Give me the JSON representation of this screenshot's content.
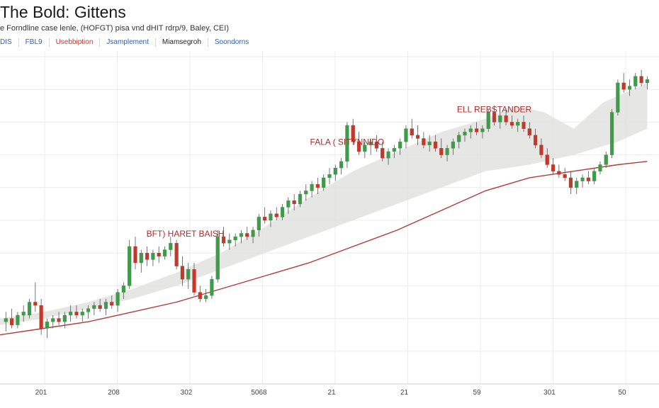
{
  "title": "The Bold: Gittens",
  "subtitle": "e Forndline case lenle, (HOFGT) pisa vnd dHIT rdrp/9, Baley, CEI)",
  "tabs": [
    {
      "label": "DIS",
      "color": "#2a62b8"
    },
    {
      "label": "FBL9",
      "color": "#2a62b8"
    },
    {
      "label": "Usebbiption",
      "color": "#c0392b"
    },
    {
      "label": "Jsamplement",
      "color": "#2a62b8"
    },
    {
      "label": "Miamsegroh",
      "color": "#222222"
    },
    {
      "label": "Soondorns",
      "color": "#2a62b8"
    }
  ],
  "colors": {
    "up": "#3f9a4a",
    "down": "#c0392b",
    "ma_line": "#b23a3a",
    "band": "#e2e2e0",
    "grid": "#ececec",
    "annotation": "#b02a2a"
  },
  "chart_data": {
    "type": "candlestick",
    "title": "The Bold: Gittens",
    "x_tick_labels": [
      "201",
      "208",
      "302",
      "5068",
      "21",
      "21",
      "59",
      "301",
      "50"
    ],
    "ylim": [
      0,
      100
    ],
    "grid": true,
    "annotations": [
      {
        "text": "BFT) HARET BAISH",
        "x": 63,
        "y": 45
      },
      {
        "text": "FALA ( SITYNNIDO",
        "x": 118,
        "y": 73
      },
      {
        "text": "ELL REBSTANDER",
        "x": 168,
        "y": 83
      }
    ],
    "candles": [
      [
        2,
        19,
        22,
        16,
        20
      ],
      [
        4,
        20,
        23,
        17,
        18
      ],
      [
        6,
        18,
        22,
        17,
        21
      ],
      [
        8,
        21,
        24,
        19,
        22
      ],
      [
        10,
        21,
        26,
        20,
        25
      ],
      [
        12,
        25,
        31,
        22,
        24
      ],
      [
        14,
        24,
        26,
        15,
        17
      ],
      [
        16,
        17,
        20,
        14,
        19
      ],
      [
        18,
        19,
        21,
        17,
        20
      ],
      [
        20,
        20,
        22,
        18,
        19
      ],
      [
        22,
        19,
        22,
        17,
        21
      ],
      [
        24,
        21,
        24,
        19,
        22
      ],
      [
        26,
        22,
        24,
        20,
        21
      ],
      [
        28,
        21,
        23,
        19,
        22
      ],
      [
        30,
        22,
        24,
        20,
        23
      ],
      [
        32,
        23,
        25,
        21,
        24
      ],
      [
        34,
        24,
        26,
        22,
        23
      ],
      [
        36,
        23,
        26,
        21,
        25
      ],
      [
        38,
        25,
        27,
        23,
        24
      ],
      [
        40,
        24,
        29,
        22,
        28
      ],
      [
        42,
        28,
        31,
        26,
        30
      ],
      [
        44,
        30,
        44,
        29,
        42
      ],
      [
        46,
        42,
        45,
        35,
        37
      ],
      [
        48,
        37,
        41,
        34,
        40
      ],
      [
        50,
        40,
        42,
        36,
        38
      ],
      [
        52,
        38,
        41,
        36,
        40
      ],
      [
        54,
        40,
        42,
        37,
        39
      ],
      [
        56,
        39,
        42,
        38,
        41
      ],
      [
        58,
        41,
        45,
        39,
        43
      ],
      [
        60,
        43,
        44,
        35,
        36
      ],
      [
        62,
        36,
        39,
        30,
        32
      ],
      [
        64,
        32,
        37,
        29,
        35
      ],
      [
        66,
        35,
        37,
        27,
        28
      ],
      [
        68,
        28,
        30,
        25,
        26
      ],
      [
        70,
        26,
        29,
        25,
        27
      ],
      [
        72,
        27,
        33,
        26,
        32
      ],
      [
        74,
        32,
        47,
        31,
        45
      ],
      [
        76,
        45,
        48,
        42,
        43
      ],
      [
        78,
        43,
        46,
        41,
        44
      ],
      [
        80,
        44,
        46,
        42,
        45
      ],
      [
        82,
        45,
        47,
        43,
        46
      ],
      [
        84,
        46,
        48,
        44,
        45
      ],
      [
        86,
        45,
        48,
        43,
        47
      ],
      [
        88,
        47,
        52,
        45,
        51
      ],
      [
        90,
        51,
        54,
        49,
        50
      ],
      [
        92,
        50,
        53,
        48,
        52
      ],
      [
        94,
        52,
        54,
        50,
        51
      ],
      [
        96,
        51,
        55,
        50,
        54
      ],
      [
        98,
        54,
        57,
        52,
        56
      ],
      [
        100,
        56,
        58,
        53,
        55
      ],
      [
        102,
        55,
        59,
        54,
        58
      ],
      [
        104,
        58,
        61,
        56,
        59
      ],
      [
        106,
        59,
        62,
        57,
        61
      ],
      [
        108,
        61,
        63,
        58,
        60
      ],
      [
        110,
        60,
        64,
        59,
        63
      ],
      [
        112,
        63,
        66,
        61,
        64
      ],
      [
        114,
        64,
        67,
        62,
        66
      ],
      [
        116,
        66,
        69,
        64,
        68
      ],
      [
        118,
        68,
        80,
        66,
        79
      ],
      [
        120,
        79,
        81,
        73,
        74
      ],
      [
        122,
        74,
        77,
        70,
        71
      ],
      [
        124,
        71,
        74,
        69,
        73
      ],
      [
        126,
        73,
        75,
        70,
        74
      ],
      [
        128,
        74,
        76,
        71,
        72
      ],
      [
        130,
        72,
        74,
        68,
        69
      ],
      [
        132,
        69,
        72,
        67,
        71
      ],
      [
        134,
        71,
        73,
        69,
        72
      ],
      [
        136,
        72,
        75,
        70,
        74
      ],
      [
        138,
        74,
        79,
        72,
        78
      ],
      [
        140,
        78,
        81,
        75,
        76
      ],
      [
        142,
        76,
        79,
        73,
        75
      ],
      [
        144,
        75,
        77,
        72,
        73
      ],
      [
        146,
        73,
        76,
        71,
        74
      ],
      [
        148,
        74,
        76,
        71,
        72
      ],
      [
        150,
        72,
        75,
        69,
        70
      ],
      [
        152,
        70,
        73,
        68,
        72
      ],
      [
        154,
        72,
        75,
        70,
        74
      ],
      [
        156,
        74,
        77,
        72,
        76
      ],
      [
        158,
        76,
        78,
        74,
        77
      ],
      [
        160,
        77,
        79,
        75,
        78
      ],
      [
        162,
        78,
        80,
        76,
        77
      ],
      [
        164,
        77,
        79,
        75,
        78
      ],
      [
        166,
        78,
        84,
        77,
        83
      ],
      [
        168,
        83,
        85,
        79,
        80
      ],
      [
        170,
        80,
        83,
        78,
        82
      ],
      [
        172,
        82,
        84,
        79,
        80
      ],
      [
        174,
        80,
        82,
        78,
        79
      ],
      [
        176,
        79,
        81,
        77,
        80
      ],
      [
        178,
        80,
        82,
        77,
        78
      ],
      [
        180,
        78,
        80,
        75,
        76
      ],
      [
        182,
        76,
        78,
        72,
        73
      ],
      [
        184,
        73,
        75,
        69,
        70
      ],
      [
        186,
        70,
        72,
        66,
        67
      ],
      [
        188,
        67,
        69,
        64,
        65
      ],
      [
        190,
        65,
        67,
        63,
        64
      ],
      [
        192,
        64,
        66,
        62,
        63
      ],
      [
        194,
        63,
        65,
        58,
        60
      ],
      [
        196,
        60,
        63,
        58,
        62
      ],
      [
        198,
        62,
        64,
        60,
        63
      ],
      [
        200,
        63,
        65,
        61,
        62
      ],
      [
        202,
        62,
        66,
        61,
        65
      ],
      [
        204,
        65,
        68,
        64,
        67
      ],
      [
        206,
        67,
        71,
        66,
        70
      ],
      [
        208,
        70,
        84,
        69,
        83
      ],
      [
        210,
        83,
        93,
        82,
        92
      ],
      [
        212,
        92,
        95,
        89,
        90
      ],
      [
        214,
        90,
        93,
        88,
        91
      ],
      [
        216,
        91,
        95,
        90,
        94
      ],
      [
        218,
        94,
        96,
        91,
        92
      ],
      [
        220,
        92,
        94,
        90,
        93
      ]
    ],
    "ma_line": [
      [
        0,
        15
      ],
      [
        15,
        17
      ],
      [
        30,
        19
      ],
      [
        45,
        22
      ],
      [
        60,
        25
      ],
      [
        75,
        29
      ],
      [
        90,
        33
      ],
      [
        105,
        37
      ],
      [
        120,
        42
      ],
      [
        135,
        47
      ],
      [
        150,
        53
      ],
      [
        165,
        59
      ],
      [
        180,
        63
      ],
      [
        195,
        65
      ],
      [
        210,
        67
      ],
      [
        220,
        68
      ]
    ],
    "band_upper": [
      [
        0,
        20
      ],
      [
        15,
        22
      ],
      [
        30,
        25
      ],
      [
        45,
        29
      ],
      [
        60,
        34
      ],
      [
        75,
        40
      ],
      [
        90,
        48
      ],
      [
        105,
        57
      ],
      [
        120,
        65
      ],
      [
        135,
        71
      ],
      [
        150,
        77
      ],
      [
        165,
        81
      ],
      [
        175,
        85
      ],
      [
        185,
        83
      ],
      [
        195,
        78
      ],
      [
        205,
        86
      ],
      [
        220,
        92
      ]
    ],
    "band_lower": [
      [
        0,
        18
      ],
      [
        15,
        20
      ],
      [
        30,
        23
      ],
      [
        45,
        26
      ],
      [
        60,
        30
      ],
      [
        75,
        35
      ],
      [
        90,
        40
      ],
      [
        105,
        45
      ],
      [
        120,
        50
      ],
      [
        135,
        55
      ],
      [
        150,
        60
      ],
      [
        165,
        65
      ],
      [
        180,
        67
      ],
      [
        195,
        70
      ],
      [
        210,
        74
      ],
      [
        220,
        78
      ]
    ]
  }
}
